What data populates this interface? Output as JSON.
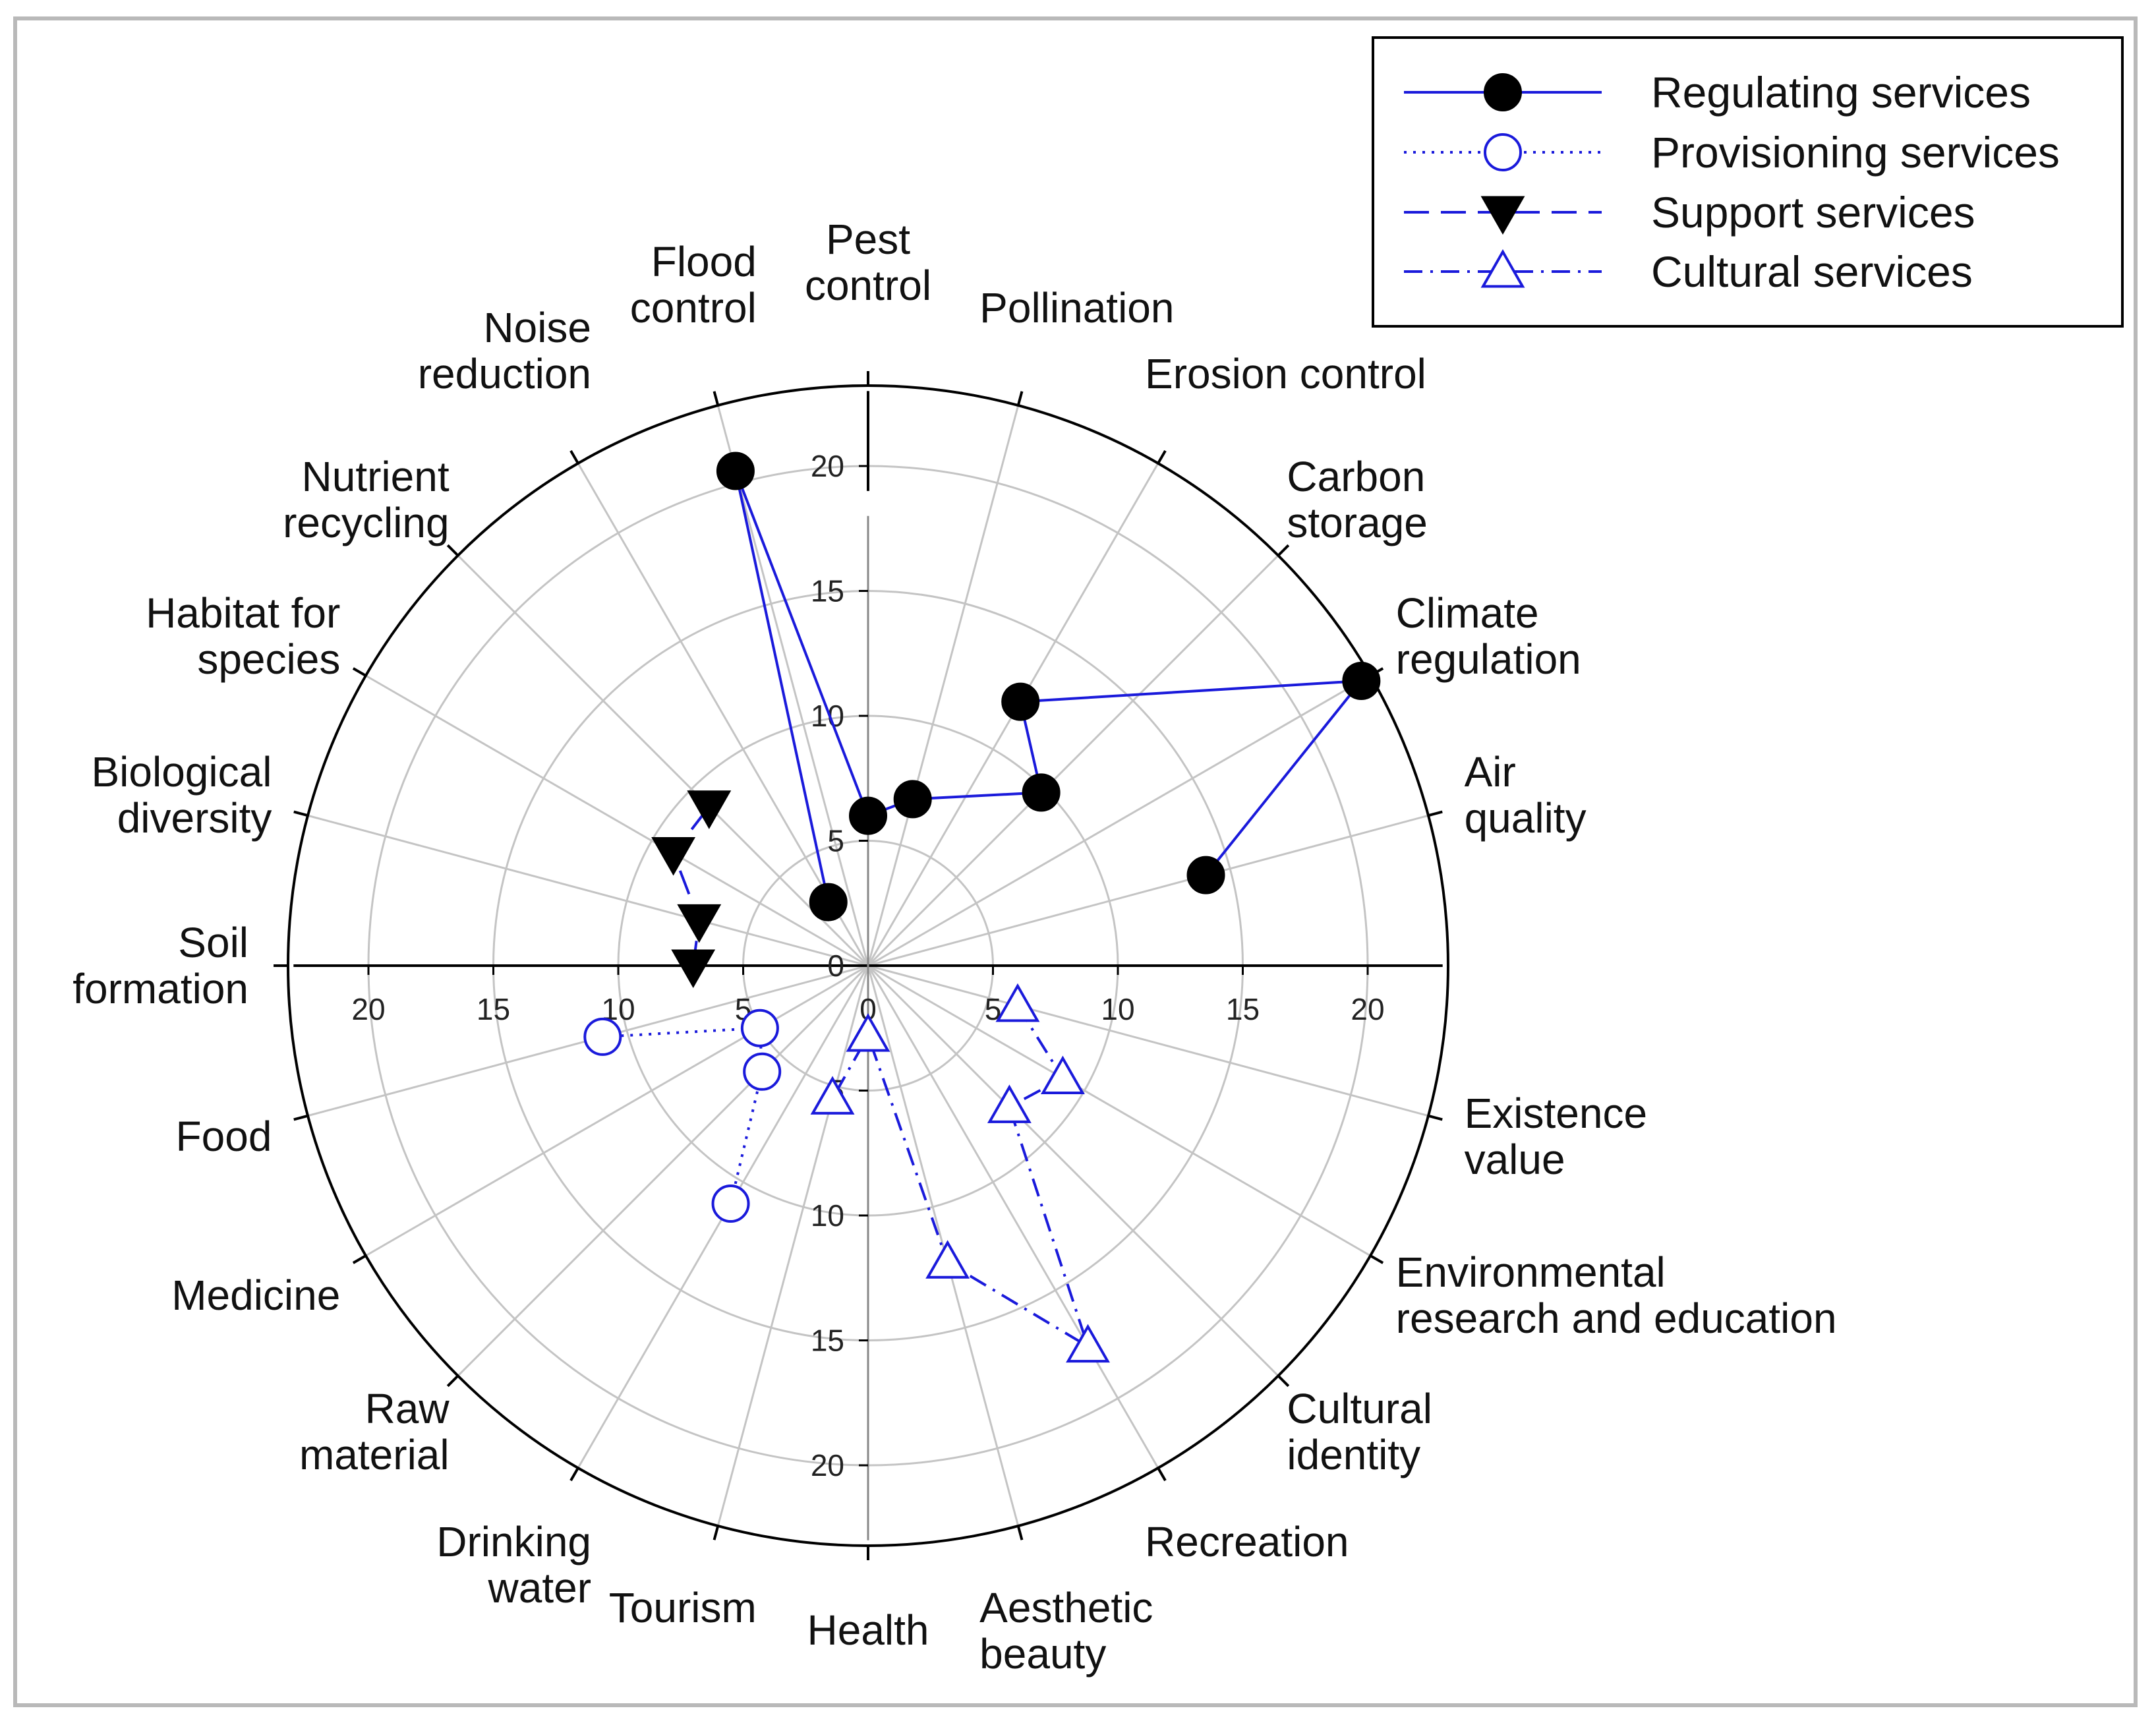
{
  "chart_data": {
    "type": "polar-scatter",
    "title": "",
    "radial_range": [
      0,
      23
    ],
    "radial_ticks": [
      0,
      5,
      10,
      15,
      20
    ],
    "categories": [
      {
        "label": [
          "Pest",
          "control"
        ],
        "angle": 0
      },
      {
        "label": [
          "Pollination"
        ],
        "angle": 15
      },
      {
        "label": [
          "Erosion control"
        ],
        "angle": 30
      },
      {
        "label": [
          "Carbon",
          "storage"
        ],
        "angle": 45
      },
      {
        "label": [
          "Climate",
          "regulation"
        ],
        "angle": 60
      },
      {
        "label": [
          "Air",
          "quality"
        ],
        "angle": 75
      },
      {
        "label": [
          "Existence",
          "value"
        ],
        "angle": 105
      },
      {
        "label": [
          "Environmental",
          "research and education"
        ],
        "angle": 120
      },
      {
        "label": [
          "Cultural",
          "identity"
        ],
        "angle": 135
      },
      {
        "label": [
          "Recreation"
        ],
        "angle": 150
      },
      {
        "label": [
          "Aesthetic",
          "beauty"
        ],
        "angle": 165
      },
      {
        "label": [
          "Health"
        ],
        "angle": 180
      },
      {
        "label": [
          "Tourism"
        ],
        "angle": 195
      },
      {
        "label": [
          "Drinking",
          "water"
        ],
        "angle": 210
      },
      {
        "label": [
          "Raw",
          "material"
        ],
        "angle": 225
      },
      {
        "label": [
          "Medicine"
        ],
        "angle": 240
      },
      {
        "label": [
          "Food"
        ],
        "angle": 255
      },
      {
        "label": [
          "Soil",
          "formation"
        ],
        "angle": 270
      },
      {
        "label": [
          "Biological",
          "diversity"
        ],
        "angle": 285
      },
      {
        "label": [
          "Habitat for",
          "species"
        ],
        "angle": 300
      },
      {
        "label": [
          "Nutrient",
          "recycling"
        ],
        "angle": 315
      },
      {
        "label": [
          "Noise",
          "reduction"
        ],
        "angle": 330
      },
      {
        "label": [
          "Flood",
          "control"
        ],
        "angle": 345
      }
    ],
    "series": [
      {
        "name": "Regulating services",
        "marker": "filled-circle",
        "line": "solid",
        "points": [
          {
            "category": "Noise reduction",
            "angle": 328,
            "value": 3.0
          },
          {
            "category": "Flood control",
            "angle": 345,
            "value": 20.5
          },
          {
            "category": "Pest control",
            "angle": 0,
            "value": 6.0
          },
          {
            "category": "Pollination",
            "angle": 15,
            "value": 6.9
          },
          {
            "category": "Carbon storage",
            "angle": 45,
            "value": 9.8
          },
          {
            "category": "Erosion control",
            "angle": 30,
            "value": 12.2
          },
          {
            "category": "Climate regulation",
            "angle": 60,
            "value": 22.8
          },
          {
            "category": "Air quality",
            "angle": 75,
            "value": 14.0
          }
        ]
      },
      {
        "name": "Provisioning services",
        "marker": "open-circle",
        "line": "dotted",
        "points": [
          {
            "category": "Food",
            "angle": 255,
            "value": 11.0
          },
          {
            "category": "Medicine",
            "angle": 240,
            "value": 5.0
          },
          {
            "category": "Raw material",
            "angle": 225,
            "value": 6.0
          },
          {
            "category": "Drinking water",
            "angle": 210,
            "value": 11.0
          }
        ]
      },
      {
        "name": "Support services",
        "marker": "filled-triangle-down",
        "line": "dashed",
        "points": [
          {
            "category": "Soil formation",
            "angle": 270,
            "value": 7.0
          },
          {
            "category": "Biological diversity",
            "angle": 285,
            "value": 7.0
          },
          {
            "category": "Habitat for species",
            "angle": 300,
            "value": 9.0
          },
          {
            "category": "Nutrient recycling",
            "angle": 315,
            "value": 9.0
          }
        ]
      },
      {
        "name": "Cultural services",
        "marker": "open-triangle-up",
        "line": "dash-dot",
        "points": [
          {
            "category": "Existence value",
            "angle": 105,
            "value": 6.2
          },
          {
            "category": "Environmental research and education",
            "angle": 120,
            "value": 9.0
          },
          {
            "category": "Cultural identity",
            "angle": 135,
            "value": 8.0
          },
          {
            "category": "Recreation",
            "angle": 150,
            "value": 17.6
          },
          {
            "category": "Aesthetic beauty",
            "angle": 165,
            "value": 12.3
          },
          {
            "category": "Health",
            "angle": 180,
            "value": 2.8
          },
          {
            "category": "Tourism",
            "angle": 195,
            "value": 5.5
          }
        ]
      }
    ],
    "legend": {
      "position": "top-right",
      "entries": [
        "Regulating services",
        "Provisioning services",
        "Support services",
        "Cultural services"
      ]
    },
    "colors": {
      "line": "#1a1adb",
      "grid": "#c4c4c4",
      "axis": "#000000",
      "marker_fill": "#000000",
      "open_fill": "#ffffff"
    }
  }
}
